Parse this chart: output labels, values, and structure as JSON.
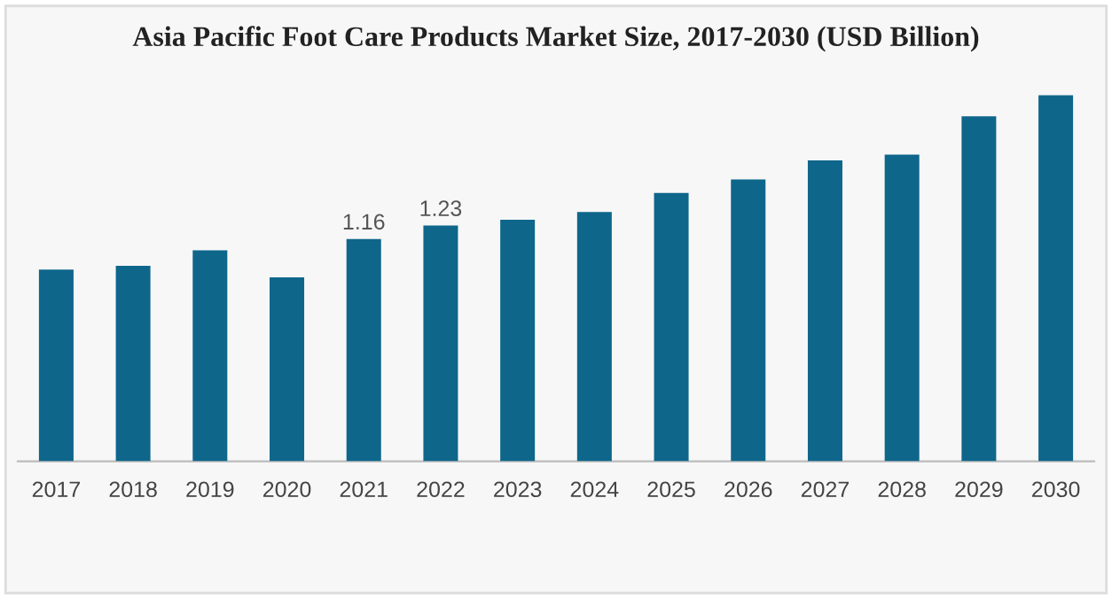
{
  "chart_data": {
    "type": "bar",
    "title": "Asia Pacific Foot Care Products Market Size, 2017-2030 (USD Billion)",
    "categories": [
      "2017",
      "2018",
      "2019",
      "2020",
      "2021",
      "2022",
      "2023",
      "2024",
      "2025",
      "2026",
      "2027",
      "2028",
      "2029",
      "2030"
    ],
    "values": [
      1.0,
      1.02,
      1.1,
      0.96,
      1.16,
      1.23,
      1.26,
      1.3,
      1.4,
      1.47,
      1.57,
      1.6,
      1.8,
      1.91
    ],
    "value_labels": [
      null,
      null,
      null,
      null,
      "1.16",
      "1.23",
      null,
      null,
      null,
      null,
      null,
      null,
      null,
      null
    ],
    "color": "#0e668b"
  }
}
